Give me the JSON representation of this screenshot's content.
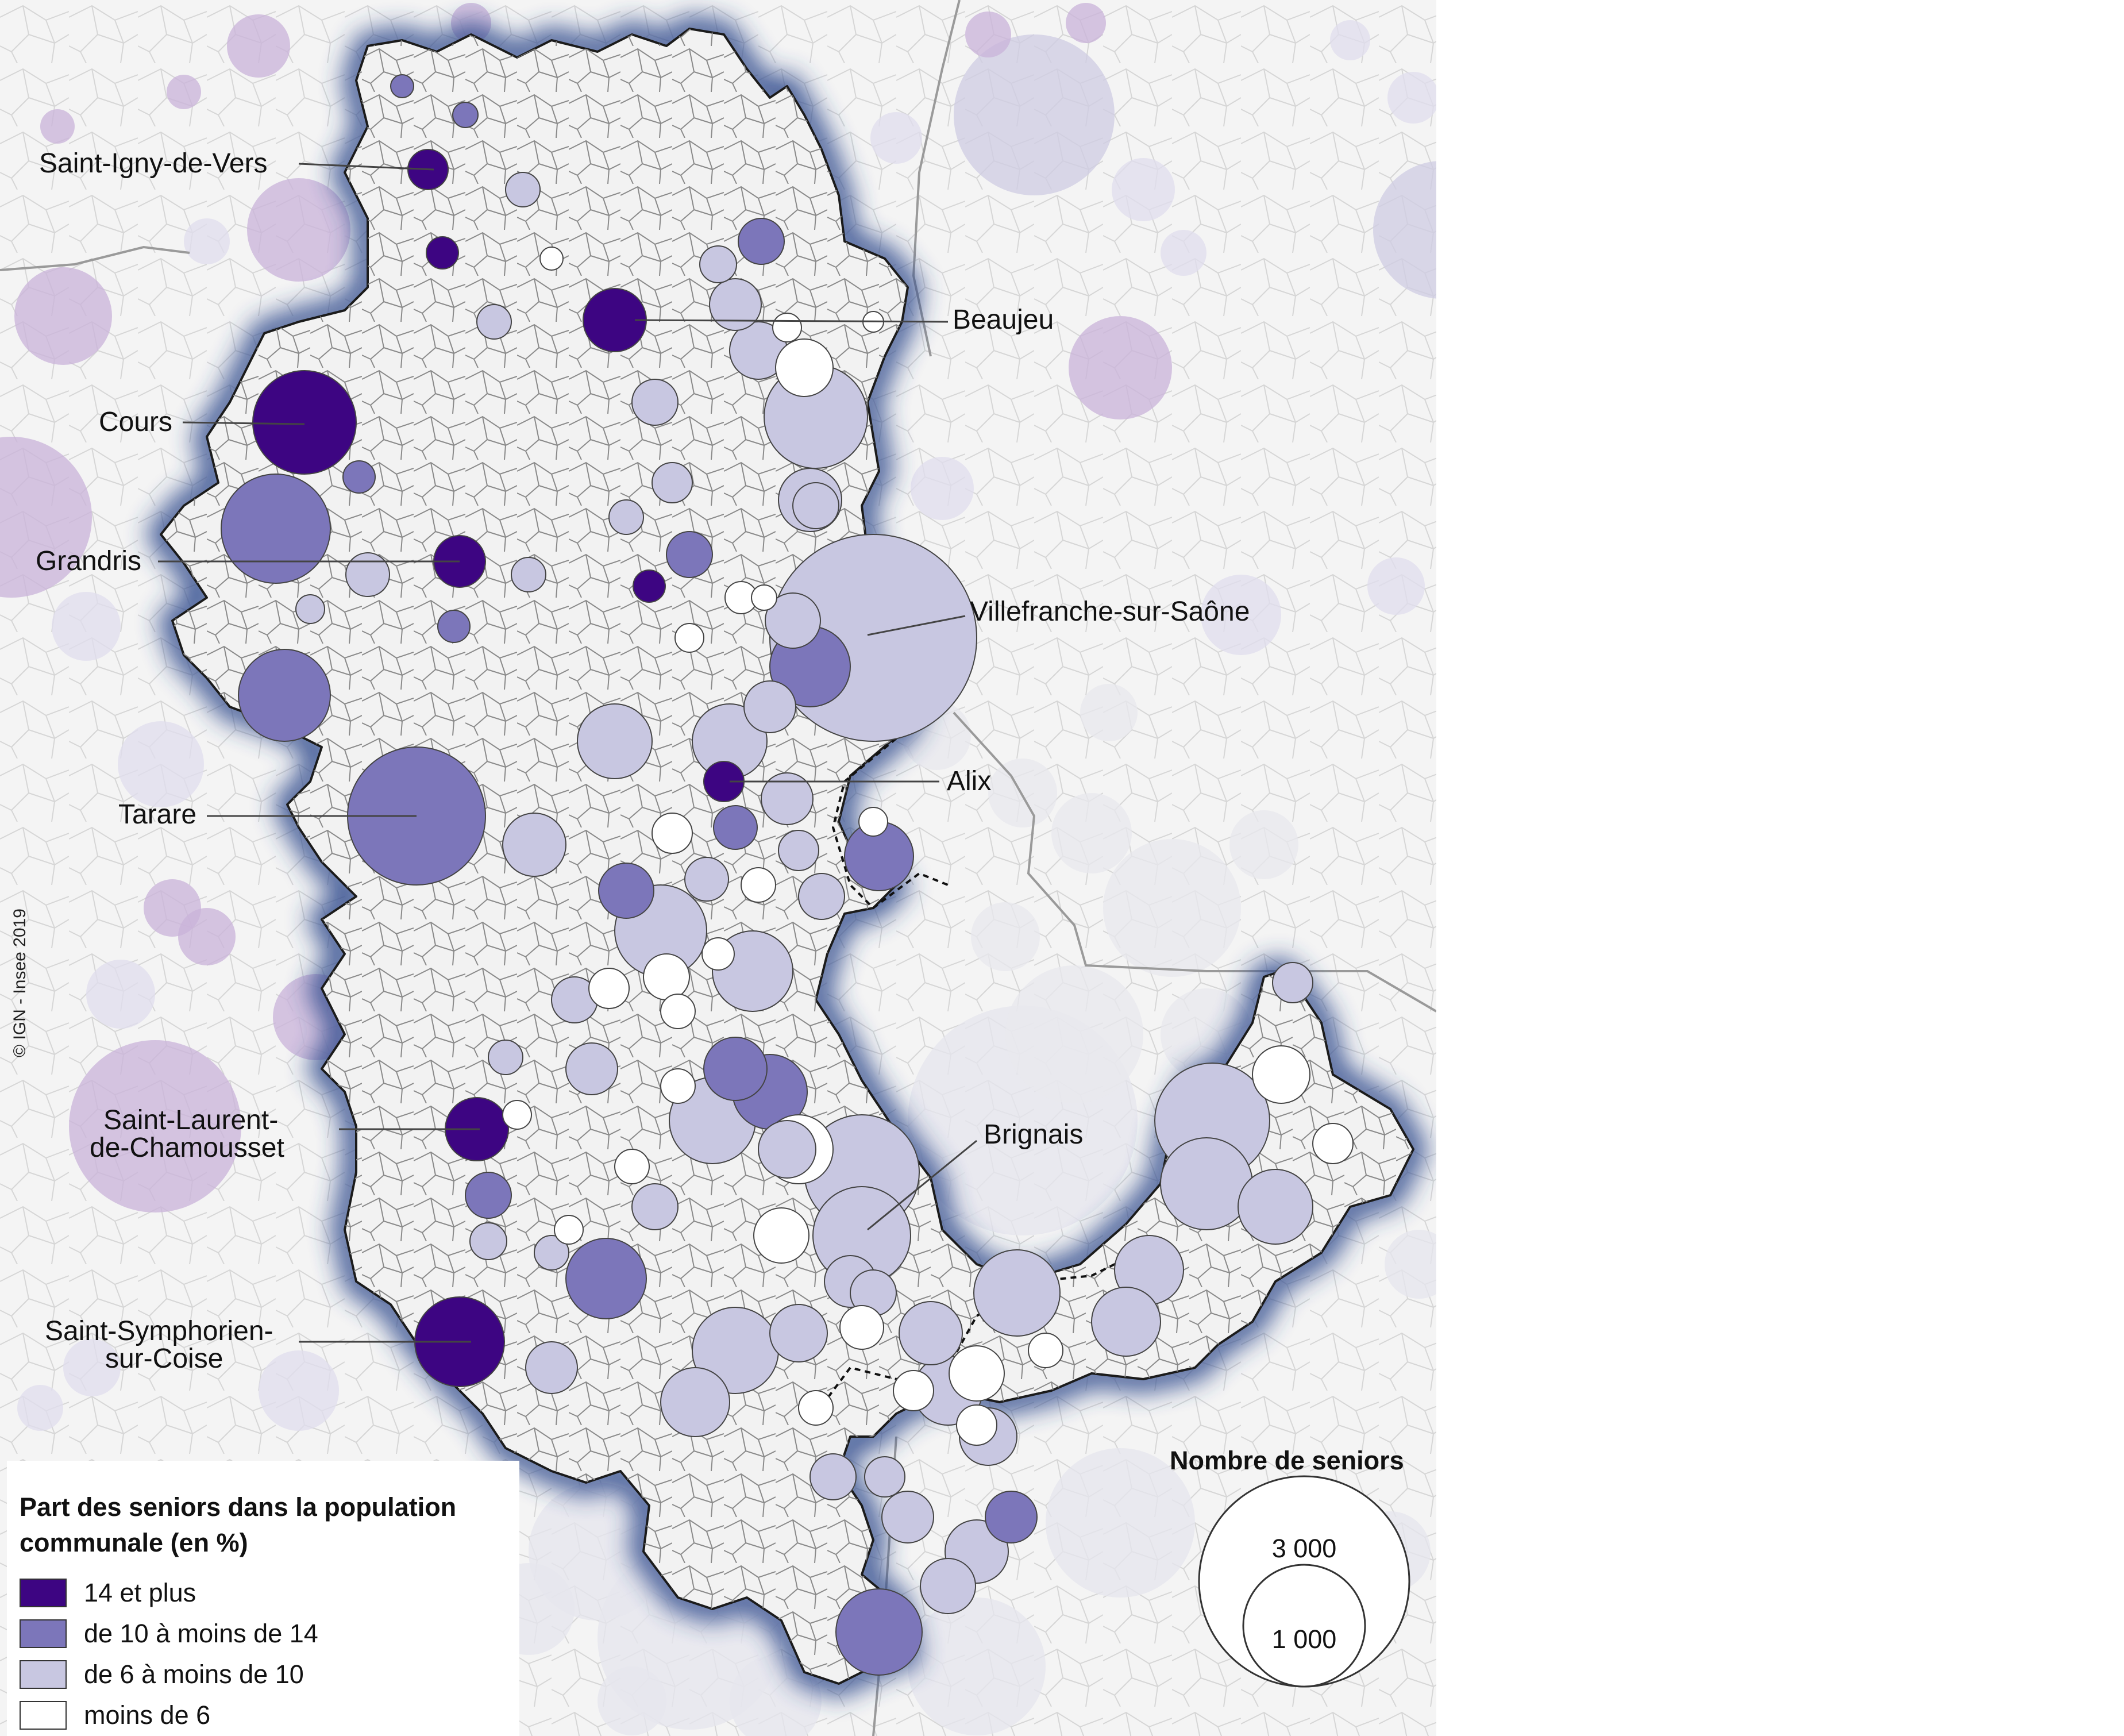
{
  "map": {
    "credit": "© IGN - Insee 2019",
    "colors": {
      "class_14_plus": "#3d0582",
      "class_10_14": "#7c76ba",
      "class_6_10": "#c8c7e1",
      "class_below_6": "#ffffff",
      "outside_tint": "#c9b3d9",
      "department_fill": "#f2f2f2",
      "department_halo": "#2e4a8c",
      "background": "#f4f4f4"
    },
    "labels": [
      {
        "id": "saint-igny-de-vers",
        "lines": [
          "Saint-Igny-de-Vers"
        ]
      },
      {
        "id": "beaujeu",
        "lines": [
          "Beaujeu"
        ]
      },
      {
        "id": "cours",
        "lines": [
          "Cours"
        ]
      },
      {
        "id": "grandris",
        "lines": [
          "Grandris"
        ]
      },
      {
        "id": "villefranche-sur-saone",
        "lines": [
          "Villefranche-sur-Saône"
        ]
      },
      {
        "id": "alix",
        "lines": [
          "Alix"
        ]
      },
      {
        "id": "tarare",
        "lines": [
          "Tarare"
        ]
      },
      {
        "id": "brignais",
        "lines": [
          "Brignais"
        ]
      },
      {
        "id": "saint-laurent-de-chamousset",
        "lines": [
          "Saint-Laurent-",
          "de-Chamousset"
        ]
      },
      {
        "id": "saint-symphorien-sur-coise",
        "lines": [
          "Saint-Symphorien-",
          "sur-Coise"
        ]
      }
    ]
  },
  "legend": {
    "title_line1": "Part des seniors dans la population",
    "title_line2": "communale (en %)",
    "classes": [
      {
        "label": "14 et plus",
        "color": "#3d0582"
      },
      {
        "label": "de 10 à moins de 14",
        "color": "#7c76ba"
      },
      {
        "label": "de 6 à moins de 10",
        "color": "#c8c7e1"
      },
      {
        "label": "moins de 6",
        "color": "#ffffff"
      }
    ]
  },
  "size_legend": {
    "title": "Nombre de seniors",
    "large_value": "3 000",
    "small_value": "1 000"
  }
}
